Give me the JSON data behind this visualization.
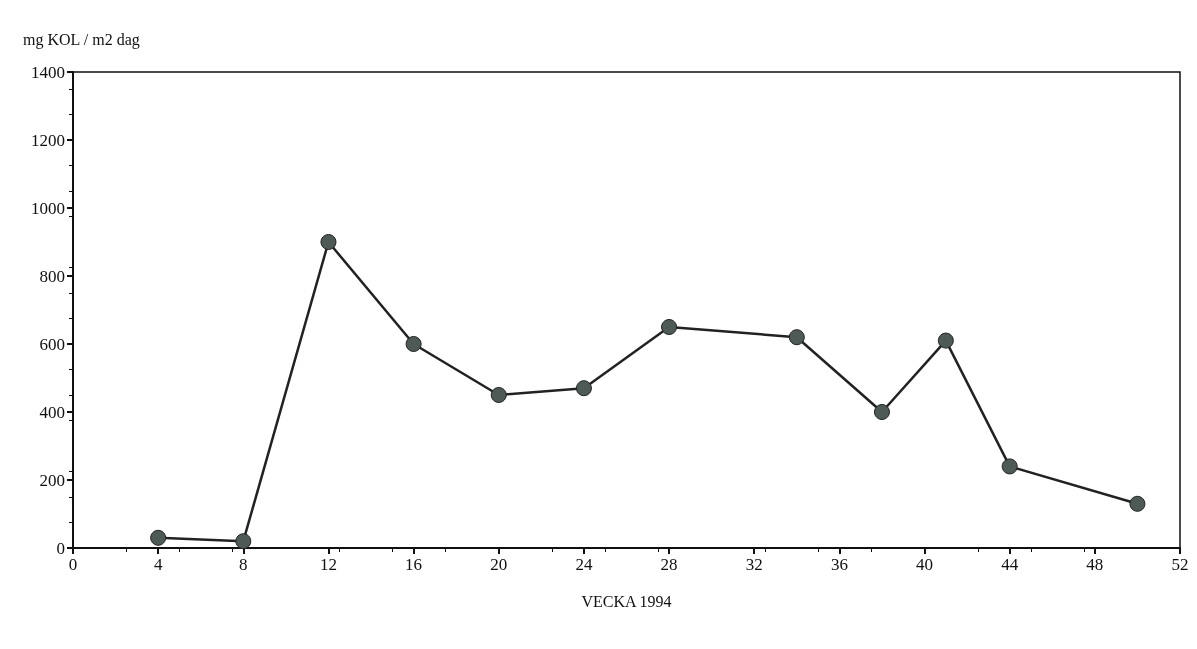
{
  "chart_data": {
    "type": "line",
    "ylabel": "mg KOL / m2 dag",
    "xlabel": "VECKA 1994",
    "x": [
      4,
      8,
      12,
      16,
      20,
      24,
      28,
      34,
      38,
      41,
      44,
      50
    ],
    "series": [
      {
        "color": "#222222",
        "values": [
          30,
          20,
          900,
          600,
          450,
          470,
          650,
          620,
          400,
          610,
          240,
          130
        ]
      }
    ],
    "xlim": [
      0,
      52
    ],
    "xticks": [
      0,
      4,
      8,
      12,
      16,
      20,
      24,
      28,
      32,
      36,
      40,
      44,
      48,
      52
    ],
    "ylim": [
      0,
      1400
    ],
    "yticks": [
      0,
      200,
      400,
      600,
      800,
      1000,
      1200,
      1400
    ],
    "grid": false,
    "marker": "circle",
    "line_style": "solid"
  }
}
